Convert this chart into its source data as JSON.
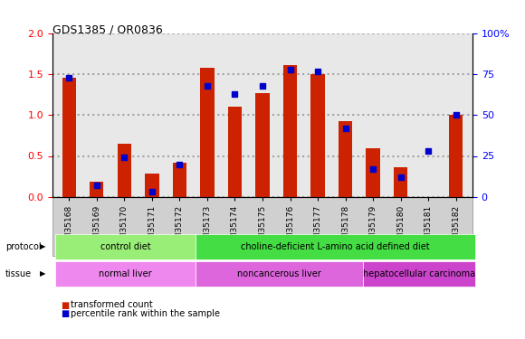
{
  "title": "GDS1385 / OR0836",
  "samples": [
    "GSM35168",
    "GSM35169",
    "GSM35170",
    "GSM35171",
    "GSM35172",
    "GSM35173",
    "GSM35174",
    "GSM35175",
    "GSM35176",
    "GSM35177",
    "GSM35178",
    "GSM35179",
    "GSM35180",
    "GSM35181",
    "GSM35182"
  ],
  "transformed_count": [
    1.46,
    0.18,
    0.65,
    0.28,
    0.42,
    1.58,
    1.1,
    1.27,
    1.62,
    1.51,
    0.93,
    0.6,
    0.36,
    0.0,
    1.0
  ],
  "percentile_rank": [
    73,
    7,
    24,
    3,
    20,
    68,
    63,
    68,
    78,
    77,
    42,
    17,
    12,
    28,
    50
  ],
  "bar_color": "#cc2200",
  "dot_color": "#0000cc",
  "ylim_left": [
    0,
    2
  ],
  "ylim_right": [
    0,
    100
  ],
  "yticks_left": [
    0,
    0.5,
    1.0,
    1.5,
    2.0
  ],
  "yticks_right": [
    0,
    25,
    50,
    75,
    100
  ],
  "ytick_labels_right": [
    "0",
    "25",
    "50",
    "75",
    "100%"
  ],
  "protocol_labels": [
    {
      "text": "control diet",
      "start": 0,
      "end": 4,
      "color": "#99ee77"
    },
    {
      "text": "choline-deficient L-amino acid defined diet",
      "start": 5,
      "end": 14,
      "color": "#44dd44"
    }
  ],
  "tissue_labels": [
    {
      "text": "normal liver",
      "start": 0,
      "end": 4,
      "color": "#ee88ee"
    },
    {
      "text": "noncancerous liver",
      "start": 5,
      "end": 10,
      "color": "#dd66dd"
    },
    {
      "text": "hepatocellular carcinoma",
      "start": 11,
      "end": 14,
      "color": "#cc44cc"
    }
  ],
  "legend_red_label": "transformed count",
  "legend_blue_label": "percentile rank within the sample",
  "protocol_row_label": "protocol",
  "tissue_row_label": "tissue",
  "grid_color": "#000000",
  "grid_alpha": 0.3,
  "grid_linestyle": ":"
}
